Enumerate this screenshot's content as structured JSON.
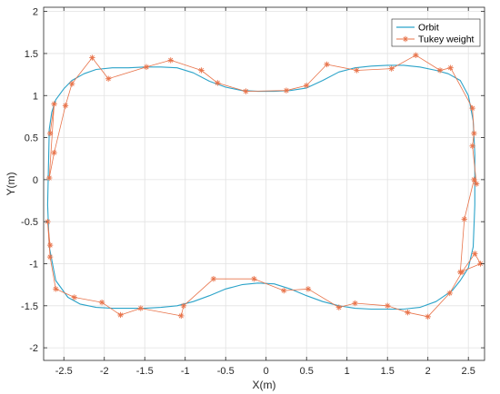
{
  "chart_data": {
    "type": "line",
    "xlabel": "X(m)",
    "ylabel": "Y(m)",
    "xlim": [
      -2.75,
      2.7
    ],
    "ylim": [
      -2.15,
      2.05
    ],
    "xticks": [
      -2.5,
      -2,
      -1.5,
      -1,
      -0.5,
      0,
      0.5,
      1,
      1.5,
      2,
      2.5
    ],
    "xtick_labels": [
      "-2.5",
      "-2",
      "-1.5",
      "-1",
      "-0.5",
      "0",
      "0.5",
      "1",
      "1.5",
      "2",
      "2.5"
    ],
    "yticks": [
      -2,
      -1.5,
      -1,
      -0.5,
      0,
      0.5,
      1,
      1.5,
      2
    ],
    "ytick_labels": [
      "-2",
      "-1.5",
      "-1",
      "-0.5",
      "0",
      "0.5",
      "1",
      "1.5",
      "2"
    ],
    "grid": true,
    "legend_position": "top-right",
    "series": [
      {
        "name": "Orbit",
        "color": "#2ba3c9",
        "marker": "none",
        "x": [
          -2.68,
          -2.65,
          -2.6,
          -2.5,
          -2.4,
          -2.25,
          -2.1,
          -1.9,
          -1.7,
          -1.5,
          -1.3,
          -1.1,
          -0.9,
          -0.7,
          -0.5,
          -0.3,
          -0.1,
          0.1,
          0.3,
          0.5,
          0.7,
          0.9,
          1.1,
          1.3,
          1.5,
          1.7,
          1.9,
          2.1,
          2.25,
          2.4,
          2.5,
          2.56,
          2.58,
          2.58,
          2.56,
          2.5,
          2.4,
          2.3,
          2.1,
          1.9,
          1.7,
          1.5,
          1.3,
          1.1,
          0.9,
          0.7,
          0.5,
          0.3,
          0.1,
          -0.1,
          -0.3,
          -0.5,
          -0.7,
          -0.9,
          -1.1,
          -1.3,
          -1.5,
          -1.7,
          -1.9,
          -2.1,
          -2.3,
          -2.45,
          -2.6,
          -2.68,
          -2.7,
          -2.68
        ],
        "y": [
          0.6,
          0.8,
          0.95,
          1.08,
          1.18,
          1.26,
          1.31,
          1.33,
          1.33,
          1.34,
          1.34,
          1.33,
          1.27,
          1.17,
          1.1,
          1.06,
          1.05,
          1.05,
          1.06,
          1.09,
          1.18,
          1.28,
          1.33,
          1.35,
          1.36,
          1.36,
          1.34,
          1.3,
          1.26,
          1.18,
          1.0,
          0.7,
          0.3,
          -0.3,
          -0.8,
          -1.05,
          -1.2,
          -1.32,
          -1.45,
          -1.52,
          -1.54,
          -1.54,
          -1.54,
          -1.53,
          -1.5,
          -1.45,
          -1.38,
          -1.3,
          -1.24,
          -1.23,
          -1.25,
          -1.3,
          -1.38,
          -1.45,
          -1.5,
          -1.52,
          -1.53,
          -1.53,
          -1.53,
          -1.52,
          -1.48,
          -1.4,
          -1.2,
          -0.8,
          -0.3,
          0.6
        ]
      },
      {
        "name": "Tukey weight",
        "color": "#e8734a",
        "marker": "*",
        "x": [
          -2.67,
          -2.62,
          -2.68,
          -2.62,
          -2.48,
          -2.4,
          -2.15,
          -1.95,
          -1.48,
          -1.18,
          -0.8,
          -0.6,
          -0.25,
          0.25,
          0.5,
          0.75,
          1.12,
          1.55,
          1.85,
          2.15,
          2.28,
          2.55,
          2.57,
          2.55,
          2.6,
          2.57,
          2.45,
          2.4,
          2.65,
          2.58,
          2.42,
          2.27,
          2.0,
          1.75,
          1.5,
          1.1,
          0.9,
          0.52,
          0.22,
          -0.15,
          -0.65,
          -1.02,
          -1.05,
          -1.55,
          -1.8,
          -2.03,
          -2.37,
          -2.6,
          -2.67,
          -2.7,
          -2.67
        ],
        "y": [
          0.55,
          0.9,
          0.02,
          0.32,
          0.88,
          1.14,
          1.45,
          1.2,
          1.34,
          1.42,
          1.3,
          1.15,
          1.05,
          1.06,
          1.12,
          1.37,
          1.3,
          1.32,
          1.48,
          1.3,
          1.33,
          0.85,
          0.55,
          0.4,
          -0.05,
          0.0,
          -0.47,
          -1.1,
          -1.0,
          -0.88,
          -1.1,
          -1.35,
          -1.63,
          -1.58,
          -1.5,
          -1.47,
          -1.52,
          -1.3,
          -1.32,
          -1.18,
          -1.18,
          -1.5,
          -1.62,
          -1.53,
          -1.61,
          -1.46,
          -1.4,
          -1.3,
          -0.92,
          -0.5,
          -0.78
        ]
      }
    ]
  }
}
